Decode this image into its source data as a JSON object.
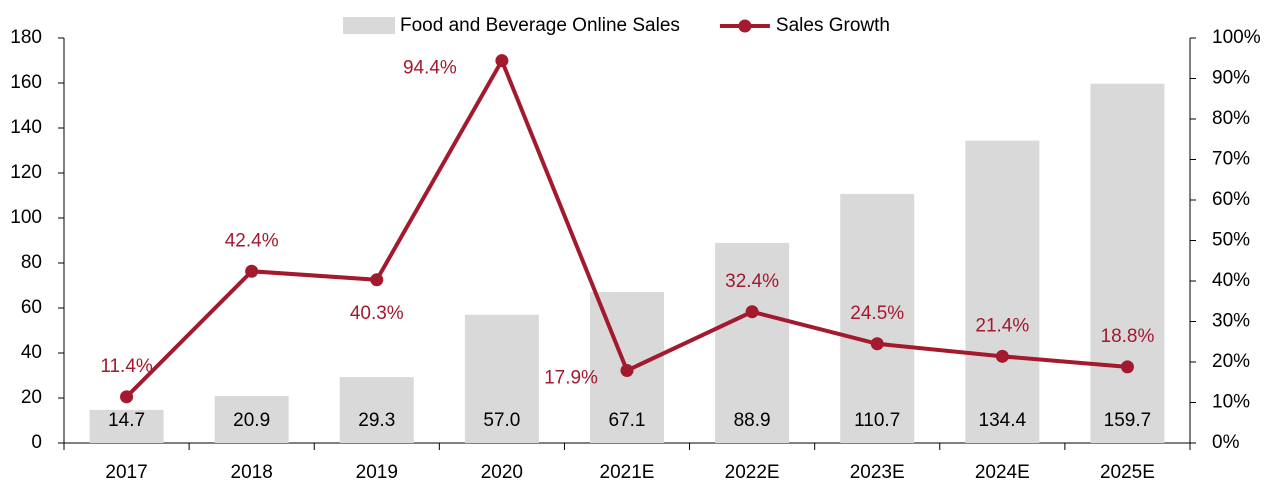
{
  "chart_data": {
    "type": "combo",
    "categories": [
      "2017",
      "2018",
      "2019",
      "2020",
      "2021E",
      "2022E",
      "2023E",
      "2024E",
      "2025E"
    ],
    "series": [
      {
        "name": "Food and Beverage Online Sales",
        "type": "bar",
        "color": "#d9d9d9",
        "axis": "y",
        "values": [
          14.7,
          20.9,
          29.3,
          57.0,
          67.1,
          88.9,
          110.7,
          134.4,
          159.7
        ],
        "value_labels": [
          "14.7",
          "20.9",
          "29.3",
          "57.0",
          "67.1",
          "88.9",
          "110.7",
          "134.4",
          "159.7"
        ]
      },
      {
        "name": "Sales Growth",
        "type": "line",
        "color": "#a3192e",
        "axis": "y2",
        "values": [
          11.4,
          42.4,
          40.3,
          94.4,
          17.9,
          32.4,
          24.5,
          21.4,
          18.8
        ],
        "value_labels": [
          "11.4%",
          "42.4%",
          "40.3%",
          "94.4%",
          "17.9%",
          "32.4%",
          "24.5%",
          "21.4%",
          "18.8%"
        ]
      }
    ],
    "ylim": [
      0,
      180
    ],
    "yticks": [
      0,
      20,
      40,
      60,
      80,
      100,
      120,
      140,
      160,
      180
    ],
    "y2lim": [
      0,
      100
    ],
    "y2ticks": [
      {
        "value": 0,
        "label": "0%"
      },
      {
        "value": 10,
        "label": "10%"
      },
      {
        "value": 20,
        "label": "20%"
      },
      {
        "value": 30,
        "label": "30%"
      },
      {
        "value": 40,
        "label": "40%"
      },
      {
        "value": 50,
        "label": "50%"
      },
      {
        "value": 60,
        "label": "60%"
      },
      {
        "value": 70,
        "label": "70%"
      },
      {
        "value": 80,
        "label": "80%"
      },
      {
        "value": 90,
        "label": "90%"
      },
      {
        "value": 100,
        "label": "100%"
      }
    ],
    "legend": "top"
  }
}
